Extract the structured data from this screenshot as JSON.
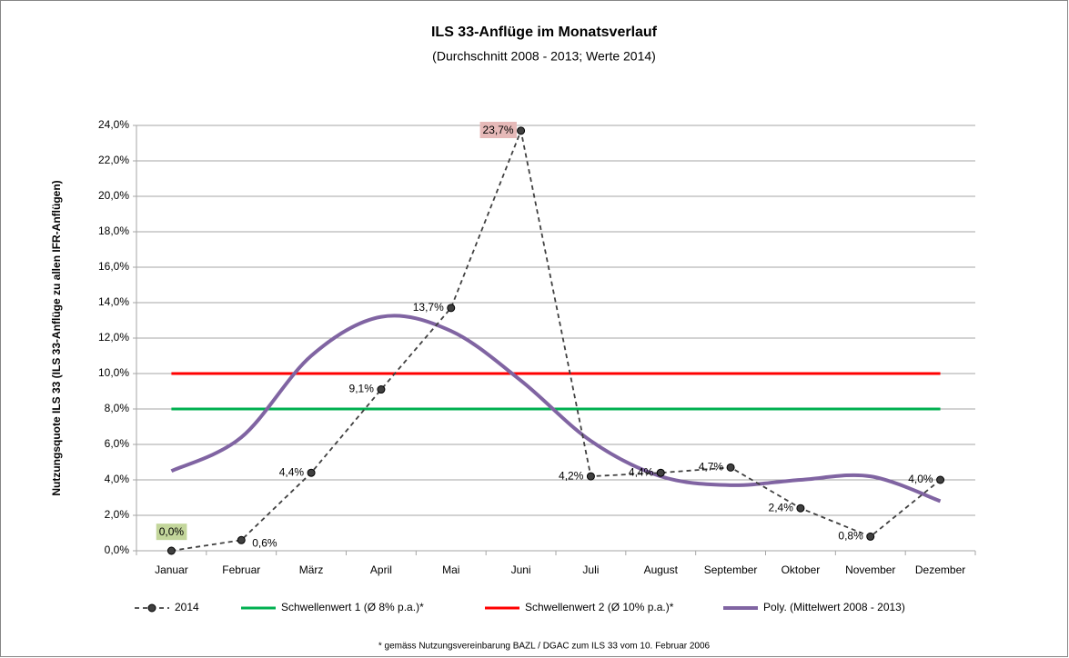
{
  "chart_data": {
    "type": "line",
    "title": "ILS 33-Anflüge im Monatsverlauf",
    "subtitle": "(Durchschnitt 2008 - 2013; Werte 2014)",
    "y_label": "Nutzungsquote ILS 33 (ILS 33-Anflüge zu allen IFR-Anflügen)",
    "footnote": "* gemäss Nutzungsvereinbarung BAZL / DGAC zum ILS 33 vom 10. Februar 2006",
    "categories": [
      "Januar",
      "Februar",
      "März",
      "April",
      "Mai",
      "Juni",
      "Juli",
      "August",
      "September",
      "Oktober",
      "November",
      "Dezember"
    ],
    "ylim": [
      0,
      24
    ],
    "yticks": [
      {
        "value": 0,
        "label": "0,0%"
      },
      {
        "value": 2,
        "label": "2,0%"
      },
      {
        "value": 4,
        "label": "4,0%"
      },
      {
        "value": 6,
        "label": "6,0%"
      },
      {
        "value": 8,
        "label": "8,0%"
      },
      {
        "value": 10,
        "label": "10,0%"
      },
      {
        "value": 12,
        "label": "12,0%"
      },
      {
        "value": 14,
        "label": "14,0%"
      },
      {
        "value": 16,
        "label": "16,0%"
      },
      {
        "value": 18,
        "label": "18,0%"
      },
      {
        "value": 20,
        "label": "20,0%"
      },
      {
        "value": 22,
        "label": "22,0%"
      },
      {
        "value": 24,
        "label": "24,0%"
      }
    ],
    "grid": true,
    "legend": "bottom",
    "series": [
      {
        "name": "2014",
        "color": "#404040",
        "style": "dashed-markers",
        "values": [
          0.0,
          0.6,
          4.4,
          9.1,
          13.7,
          23.7,
          4.2,
          4.4,
          4.7,
          2.4,
          0.8,
          4.0
        ],
        "value_labels": [
          "0,0%",
          "0,6%",
          "4,4%",
          "9,1%",
          "13,7%",
          "23,7%",
          "4,2%",
          "4,4%",
          "4,7%",
          "2,4%",
          "0,8%",
          "4,0%"
        ],
        "label_backgrounds": [
          "#c3d69b",
          null,
          null,
          null,
          null,
          "#e6b9b8",
          null,
          null,
          null,
          null,
          null,
          null
        ]
      },
      {
        "name": "Schwellenwert 1 (Ø 8% p.a.)*",
        "color": "#00b050",
        "style": "solid",
        "values": [
          8,
          8,
          8,
          8,
          8,
          8,
          8,
          8,
          8,
          8,
          8,
          8
        ]
      },
      {
        "name": "Schwellenwert 2 (Ø 10% p.a.)*",
        "color": "#ff0000",
        "style": "solid",
        "values": [
          10,
          10,
          10,
          10,
          10,
          10,
          10,
          10,
          10,
          10,
          10,
          10
        ]
      },
      {
        "name": "Poly. (Mittelwert 2008 - 2013)",
        "color": "#8064a2",
        "style": "smooth",
        "values": [
          4.5,
          6.4,
          11.0,
          13.2,
          12.4,
          9.6,
          6.2,
          4.2,
          3.7,
          4.0,
          4.2,
          2.8
        ]
      }
    ]
  }
}
